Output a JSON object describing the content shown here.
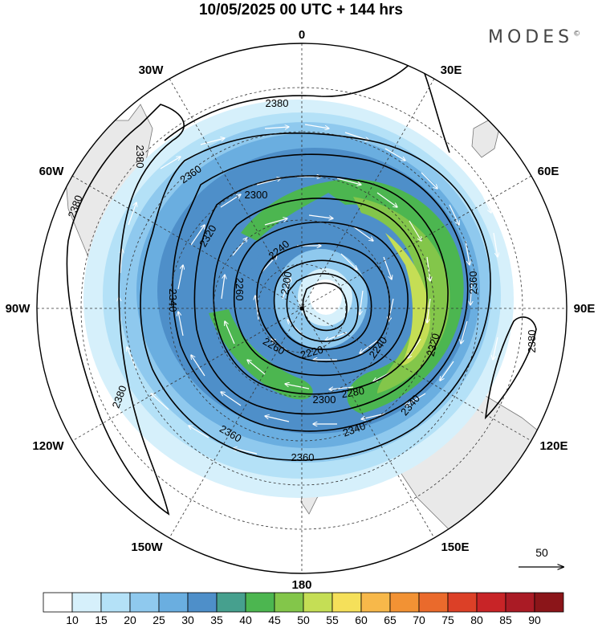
{
  "title": "10/05/2025  00 UTC  + 144 hrs",
  "brand": "MODES",
  "brand_mark": "©",
  "longitude_labels": [
    {
      "key": "0",
      "text": "0"
    },
    {
      "key": "30E",
      "text": "30E"
    },
    {
      "key": "60E",
      "text": "60E"
    },
    {
      "key": "90E",
      "text": "90E"
    },
    {
      "key": "120E",
      "text": "120E"
    },
    {
      "key": "150E",
      "text": "150E"
    },
    {
      "key": "180",
      "text": "180"
    },
    {
      "key": "150W",
      "text": "150W"
    },
    {
      "key": "120W",
      "text": "120W"
    },
    {
      "key": "90W",
      "text": "90W"
    },
    {
      "key": "60W",
      "text": "60W"
    },
    {
      "key": "30W",
      "text": "30W"
    }
  ],
  "contour_labels": [
    {
      "id": "c2380-a",
      "text": "2380"
    },
    {
      "id": "c2380-b",
      "text": "2380"
    },
    {
      "id": "c2380-c",
      "text": "2380"
    },
    {
      "id": "c2380-d",
      "text": "2380"
    },
    {
      "id": "c2380-e",
      "text": "2380"
    },
    {
      "id": "c2360-a",
      "text": "2360"
    },
    {
      "id": "c2360-b",
      "text": "2360"
    },
    {
      "id": "c2360-c",
      "text": "2360"
    },
    {
      "id": "c2360-d",
      "text": "2360"
    },
    {
      "id": "c2340-a",
      "text": "2340"
    },
    {
      "id": "c2340-b",
      "text": "2340"
    },
    {
      "id": "c2340-c",
      "text": "2340"
    },
    {
      "id": "c2320-a",
      "text": "2320"
    },
    {
      "id": "c2320-b",
      "text": "2320"
    },
    {
      "id": "c2300-a",
      "text": "2300"
    },
    {
      "id": "c2300-b",
      "text": "2300"
    },
    {
      "id": "c2280-a",
      "text": "2280"
    },
    {
      "id": "c2260-a",
      "text": "2260"
    },
    {
      "id": "c2260-b",
      "text": "2260"
    },
    {
      "id": "c2240-a",
      "text": "2240"
    },
    {
      "id": "c2240-b",
      "text": "2240"
    },
    {
      "id": "c2220-a",
      "text": "2220"
    },
    {
      "id": "c2200-a",
      "text": "2200"
    }
  ],
  "vector_reference": {
    "label": "50"
  },
  "colorbar": {
    "colors": [
      "#ffffff",
      "#d6f0fb",
      "#b4e1f7",
      "#8fc9ee",
      "#6aaee0",
      "#4e8fc9",
      "#46a08e",
      "#4cb650",
      "#83c64a",
      "#c5de55",
      "#f5e05a",
      "#f7b84a",
      "#f29234",
      "#ea6a2c",
      "#dc4027",
      "#c82427",
      "#aa1b25",
      "#8b1519"
    ],
    "labels": [
      "10",
      "15",
      "20",
      "25",
      "30",
      "35",
      "40",
      "45",
      "50",
      "55",
      "60",
      "65",
      "70",
      "75",
      "80",
      "85",
      "90"
    ]
  }
}
